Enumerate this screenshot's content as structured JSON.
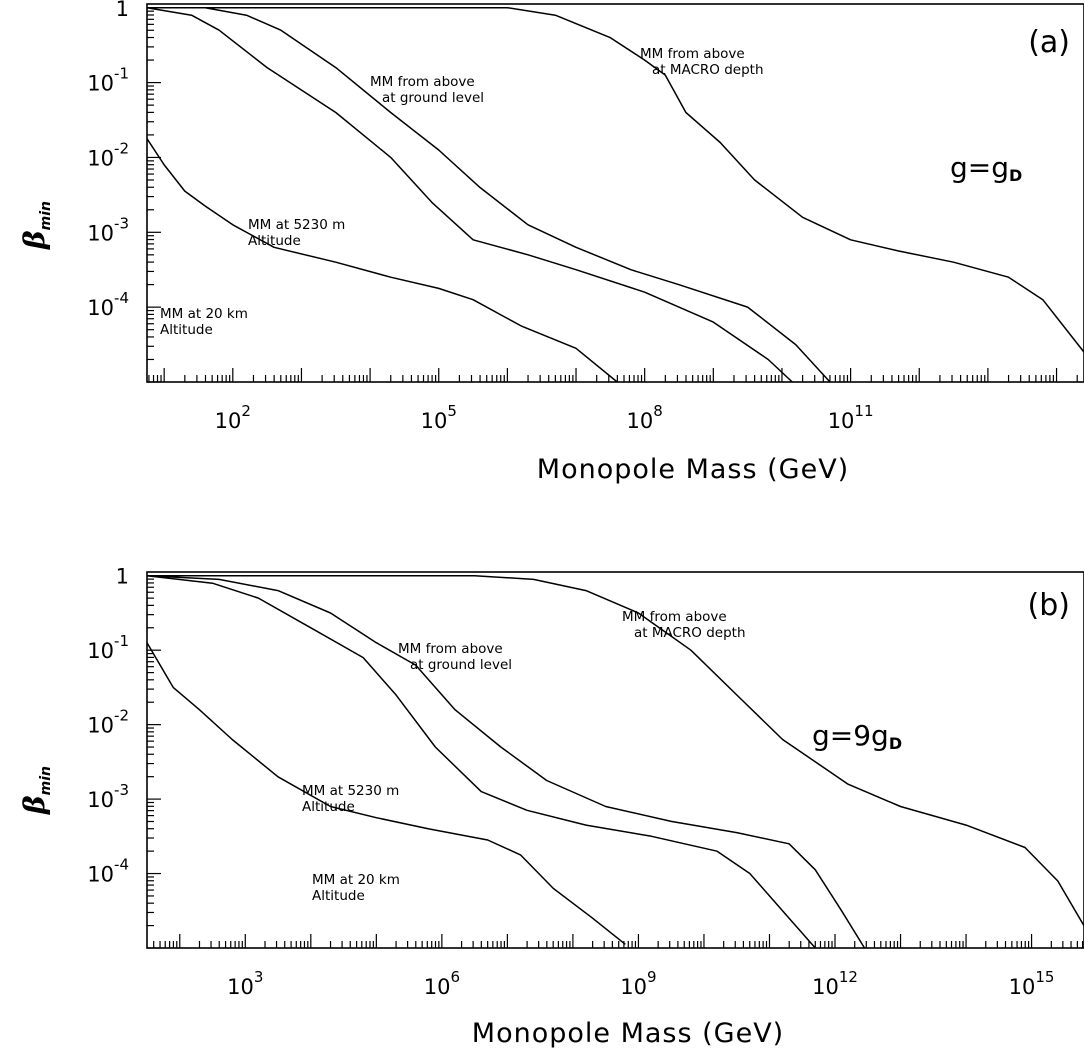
{
  "chart_data": [
    {
      "type": "line",
      "panel_label": "(a)",
      "coupling_text": "g=g",
      "coupling_sub": "D",
      "xlabel": "Monopole Mass (GeV)",
      "ylabel": "β",
      "ylabel_sub": "min",
      "x_scale": "log",
      "y_scale": "log",
      "xlim_log10": [
        0.75,
        14.4
      ],
      "ylim_log10": [
        -5,
        0.05
      ],
      "x_tick_labels": [
        {
          "base": "10",
          "exp": "2",
          "log10": 2
        },
        {
          "base": "10",
          "exp": "5",
          "log10": 5
        },
        {
          "base": "10",
          "exp": "8",
          "log10": 8
        },
        {
          "base": "10",
          "exp": "11",
          "log10": 11
        }
      ],
      "y_tick_labels": [
        {
          "base": "1",
          "exp": "",
          "log10": 0
        },
        {
          "base": "10",
          "exp": "-1",
          "log10": -1
        },
        {
          "base": "10",
          "exp": "-2",
          "log10": -2
        },
        {
          "base": "10",
          "exp": "-3",
          "log10": -3
        },
        {
          "base": "10",
          "exp": "-4",
          "log10": -4
        }
      ],
      "series": [
        {
          "name": "",
          "label_lines": [
            "MM at 20 km",
            "Altitude"
          ],
          "points_log10": [
            [
              0.75,
              -1.75
            ],
            [
              1.0,
              -2.1
            ],
            [
              1.3,
              -2.45
            ],
            [
              1.6,
              -2.65
            ],
            [
              2.0,
              -2.9
            ],
            [
              2.6,
              -3.2
            ],
            [
              3.5,
              -3.4
            ],
            [
              4.3,
              -3.6
            ],
            [
              5.0,
              -3.75
            ],
            [
              5.5,
              -3.9
            ],
            [
              6.2,
              -4.25
            ],
            [
              7.0,
              -4.55
            ],
            [
              7.6,
              -5.0
            ]
          ]
        },
        {
          "name": "",
          "label_lines": [
            "MM at 5230 m",
            "Altitude"
          ],
          "points_log10": [
            [
              0.75,
              0.0
            ],
            [
              1.4,
              -0.1
            ],
            [
              1.8,
              -0.3
            ],
            [
              2.5,
              -0.8
            ],
            [
              3.5,
              -1.4
            ],
            [
              4.3,
              -2.0
            ],
            [
              4.9,
              -2.6
            ],
            [
              5.5,
              -3.1
            ],
            [
              6.3,
              -3.3
            ],
            [
              7.0,
              -3.5
            ],
            [
              8.0,
              -3.8
            ],
            [
              9.0,
              -4.2
            ],
            [
              9.8,
              -4.7
            ],
            [
              10.15,
              -5.0
            ]
          ]
        },
        {
          "name": "",
          "label_lines": [
            "MM from above",
            "at ground level"
          ],
          "points_log10": [
            [
              0.75,
              0.0
            ],
            [
              1.6,
              0.0
            ],
            [
              2.2,
              -0.1
            ],
            [
              2.7,
              -0.3
            ],
            [
              3.5,
              -0.8
            ],
            [
              4.3,
              -1.4
            ],
            [
              5.0,
              -1.9
            ],
            [
              5.6,
              -2.4
            ],
            [
              6.3,
              -2.9
            ],
            [
              7.0,
              -3.2
            ],
            [
              7.8,
              -3.5
            ],
            [
              8.5,
              -3.7
            ],
            [
              9.5,
              -4.0
            ],
            [
              10.2,
              -4.5
            ],
            [
              10.7,
              -5.0
            ]
          ]
        },
        {
          "name": "",
          "label_lines": [
            "MM from above",
            "at MACRO depth"
          ],
          "points_log10": [
            [
              0.75,
              0.0
            ],
            [
              5.0,
              0.0
            ],
            [
              6.0,
              0.0
            ],
            [
              6.7,
              -0.1
            ],
            [
              7.5,
              -0.4
            ],
            [
              8.0,
              -0.7
            ],
            [
              8.3,
              -0.9
            ],
            [
              8.6,
              -1.4
            ],
            [
              9.1,
              -1.8
            ],
            [
              9.6,
              -2.3
            ],
            [
              10.3,
              -2.8
            ],
            [
              11.0,
              -3.1
            ],
            [
              11.7,
              -3.25
            ],
            [
              12.5,
              -3.4
            ],
            [
              13.3,
              -3.6
            ],
            [
              13.8,
              -3.9
            ],
            [
              14.4,
              -4.6
            ]
          ]
        }
      ]
    },
    {
      "type": "line",
      "panel_label": "(b)",
      "coupling_text": "g=9g",
      "coupling_sub": "D",
      "xlabel": "Monopole Mass (GeV)",
      "ylabel": "β",
      "ylabel_sub": "min",
      "x_scale": "log",
      "y_scale": "log",
      "xlim_log10": [
        1.5,
        15.8
      ],
      "ylim_log10": [
        -5,
        0.05
      ],
      "x_tick_labels": [
        {
          "base": "10",
          "exp": "3",
          "log10": 3
        },
        {
          "base": "10",
          "exp": "6",
          "log10": 6
        },
        {
          "base": "10",
          "exp": "9",
          "log10": 9
        },
        {
          "base": "10",
          "exp": "12",
          "log10": 12
        },
        {
          "base": "10",
          "exp": "15",
          "log10": 15
        }
      ],
      "y_tick_labels": [
        {
          "base": "1",
          "exp": "",
          "log10": 0
        },
        {
          "base": "10",
          "exp": "-1",
          "log10": -1
        },
        {
          "base": "10",
          "exp": "-2",
          "log10": -2
        },
        {
          "base": "10",
          "exp": "-3",
          "log10": -3
        },
        {
          "base": "10",
          "exp": "-4",
          "log10": -4
        }
      ],
      "series": [
        {
          "name": "",
          "label_lines": [
            "MM at 20 km",
            "Altitude"
          ],
          "points_log10": [
            [
              1.5,
              -0.9
            ],
            [
              1.9,
              -1.5
            ],
            [
              2.3,
              -1.8
            ],
            [
              2.8,
              -2.2
            ],
            [
              3.5,
              -2.7
            ],
            [
              4.3,
              -3.1
            ],
            [
              5.0,
              -3.25
            ],
            [
              5.8,
              -3.4
            ],
            [
              6.7,
              -3.55
            ],
            [
              7.2,
              -3.75
            ],
            [
              7.7,
              -4.2
            ],
            [
              8.3,
              -4.6
            ],
            [
              8.8,
              -4.95
            ]
          ]
        },
        {
          "name": "",
          "label_lines": [
            "MM at 5230 m",
            "Altitude"
          ],
          "points_log10": [
            [
              1.5,
              0.0
            ],
            [
              2.5,
              -0.1
            ],
            [
              3.2,
              -0.3
            ],
            [
              4.0,
              -0.7
            ],
            [
              4.8,
              -1.1
            ],
            [
              5.3,
              -1.6
            ],
            [
              5.9,
              -2.3
            ],
            [
              6.6,
              -2.9
            ],
            [
              7.3,
              -3.15
            ],
            [
              8.2,
              -3.35
            ],
            [
              9.2,
              -3.5
            ],
            [
              10.2,
              -3.7
            ],
            [
              10.7,
              -4.0
            ],
            [
              11.3,
              -4.6
            ],
            [
              11.7,
              -5.0
            ]
          ]
        },
        {
          "name": "",
          "label_lines": [
            "MM from above",
            "at ground level"
          ],
          "points_log10": [
            [
              1.5,
              0.0
            ],
            [
              2.6,
              -0.05
            ],
            [
              3.5,
              -0.2
            ],
            [
              4.3,
              -0.5
            ],
            [
              5.0,
              -0.9
            ],
            [
              5.6,
              -1.2
            ],
            [
              6.2,
              -1.8
            ],
            [
              6.9,
              -2.3
            ],
            [
              7.6,
              -2.75
            ],
            [
              8.5,
              -3.1
            ],
            [
              9.5,
              -3.3
            ],
            [
              10.5,
              -3.45
            ],
            [
              11.3,
              -3.6
            ],
            [
              11.7,
              -3.95
            ],
            [
              12.1,
              -4.5
            ],
            [
              12.45,
              -5.0
            ]
          ]
        },
        {
          "name": "",
          "label_lines": [
            "MM from above",
            "at MACRO depth"
          ],
          "points_log10": [
            [
              1.5,
              0.0
            ],
            [
              5.0,
              0.0
            ],
            [
              6.5,
              0.0
            ],
            [
              7.4,
              -0.05
            ],
            [
              8.2,
              -0.2
            ],
            [
              9.0,
              -0.5
            ],
            [
              9.8,
              -1.0
            ],
            [
              10.5,
              -1.6
            ],
            [
              11.2,
              -2.2
            ],
            [
              12.2,
              -2.8
            ],
            [
              13.0,
              -3.1
            ],
            [
              14.0,
              -3.35
            ],
            [
              14.9,
              -3.65
            ],
            [
              15.4,
              -4.1
            ],
            [
              15.8,
              -4.7
            ]
          ]
        }
      ]
    }
  ]
}
